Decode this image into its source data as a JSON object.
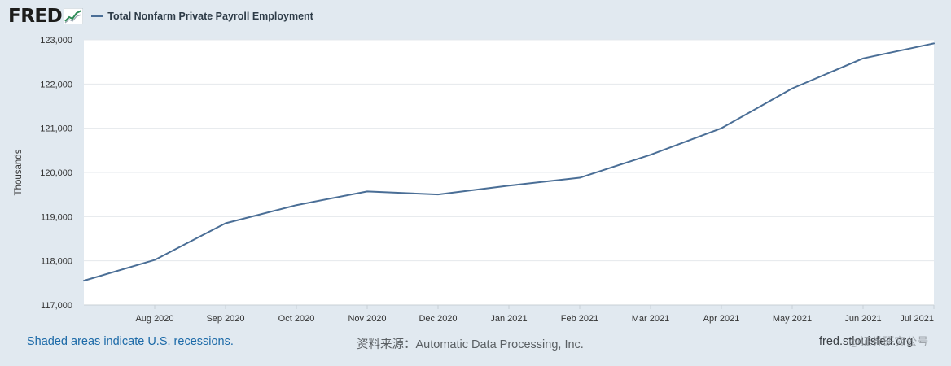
{
  "header": {
    "logo_text": "FRED",
    "series_label": "Total Nonfarm Private Payroll Employment"
  },
  "footer": {
    "recession_note": "Shaded areas indicate U.S. recessions.",
    "source": "资料来源：Automatic Data Processing, Inc.",
    "site": "fred.stlouisfed.org",
    "watermark": "@证券研究公号"
  },
  "colors": {
    "line": "#4a6e96",
    "background": "#e1e9f0",
    "plot_background": "#ffffff",
    "grid": "#e4e8ec",
    "axis_text": "#333333"
  },
  "chart_data": {
    "type": "line",
    "title": "",
    "xlabel": "",
    "ylabel": "Thousands",
    "ylim": [
      117000,
      123000
    ],
    "grid": true,
    "x": [
      "2020-07-01",
      "2020-08-01",
      "2020-09-01",
      "2020-10-01",
      "2020-11-01",
      "2020-12-01",
      "2021-01-01",
      "2021-02-01",
      "2021-03-01",
      "2021-04-01",
      "2021-05-01",
      "2021-06-01",
      "2021-07-01"
    ],
    "x_tick_labels": [
      "Aug 2020",
      "Sep 2020",
      "Oct 2020",
      "Nov 2020",
      "Dec 2020",
      "Jan 2021",
      "Feb 2021",
      "Mar 2021",
      "Apr 2021",
      "May 2021",
      "Jun 2021",
      "Jul 2021"
    ],
    "y_ticks": [
      117000,
      118000,
      119000,
      120000,
      121000,
      122000,
      123000
    ],
    "y_tick_labels": [
      "117,000",
      "118,000",
      "119,000",
      "120,000",
      "121,000",
      "122,000",
      "123,000"
    ],
    "series": [
      {
        "name": "Total Nonfarm Private Payroll Employment",
        "values": [
          117550,
          118020,
          118850,
          119260,
          119570,
          119500,
          119700,
          119880,
          120400,
          121000,
          121900,
          122580,
          122920
        ]
      }
    ]
  }
}
